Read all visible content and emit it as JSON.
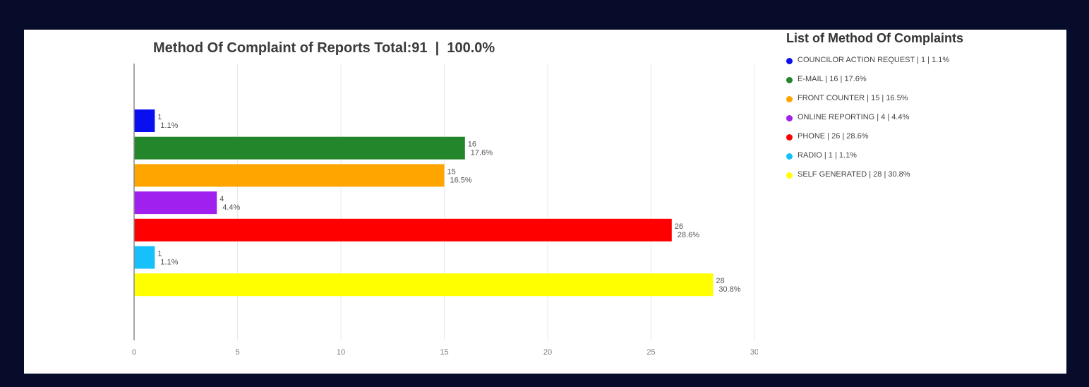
{
  "chart_data": {
    "type": "bar",
    "orientation": "horizontal",
    "title": "Method Of Complaint of Reports Total:91  |  100.0%",
    "xlim": [
      0,
      30
    ],
    "xticks": [
      0,
      5,
      10,
      15,
      20,
      25,
      30
    ],
    "grid": true,
    "categories": [
      "COUNCILOR ACTION REQUEST",
      "E-MAIL",
      "FRONT COUNTER",
      "ONLINE REPORTING",
      "PHONE",
      "RADIO",
      "SELF GENERATED"
    ],
    "values": [
      1,
      16,
      15,
      4,
      26,
      1,
      28
    ],
    "percent_labels": [
      "1.1%",
      "17.6%",
      "16.5%",
      "4.4%",
      "28.6%",
      "1.1%",
      "30.8%"
    ],
    "colors": [
      "#0a0ff0",
      "#23862a",
      "#ffa500",
      "#a020f0",
      "#ff0000",
      "#16c0fb",
      "#ffff00"
    ],
    "legend_position": "right"
  },
  "legend": {
    "title": "List of Method Of Complaints",
    "items": [
      {
        "label": "COUNCILOR ACTION REQUEST | 1 | 1.1%",
        "color": "#0a0ff0"
      },
      {
        "label": "E-MAIL | 16 | 17.6%",
        "color": "#23862a"
      },
      {
        "label": "FRONT COUNTER | 15 | 16.5%",
        "color": "#ffa500"
      },
      {
        "label": "ONLINE REPORTING | 4 | 4.4%",
        "color": "#a020f0"
      },
      {
        "label": "PHONE | 26 | 28.6%",
        "color": "#ff0000"
      },
      {
        "label": "RADIO | 1 | 1.1%",
        "color": "#16c0fb"
      },
      {
        "label": "SELF GENERATED | 28 | 30.8%",
        "color": "#ffff00"
      }
    ]
  }
}
